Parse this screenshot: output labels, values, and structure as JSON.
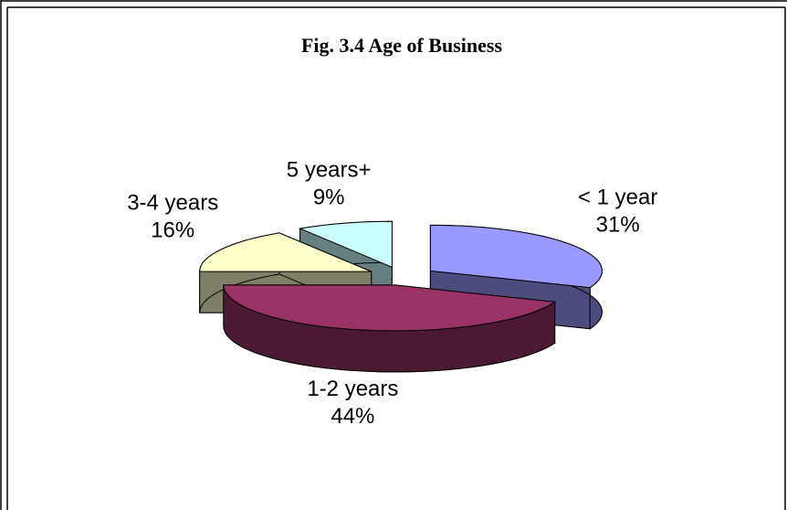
{
  "chart_data": {
    "type": "pie",
    "title": "Fig. 3.4 Age of  Business",
    "categories": [
      "< 1 year",
      "1-2 years",
      "3-4 years",
      "5 years+"
    ],
    "values": [
      31,
      44,
      16,
      9
    ],
    "value_labels": [
      "31%",
      "44%",
      "16%",
      "9%"
    ],
    "colors": [
      "#9999ff",
      "#993366",
      "#ffffcc",
      "#ccffff"
    ]
  }
}
